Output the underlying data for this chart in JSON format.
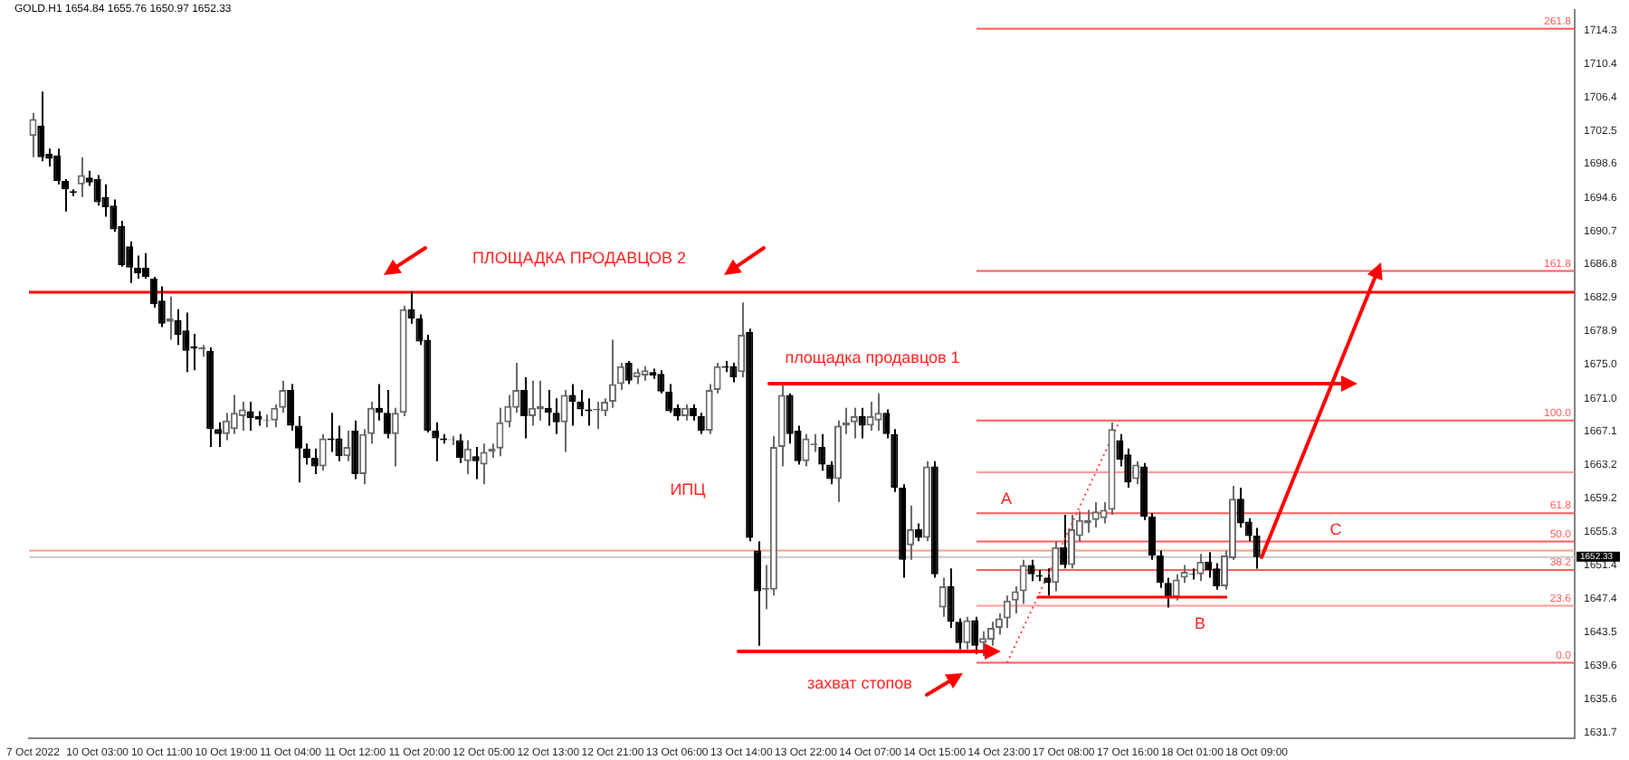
{
  "chart_data": {
    "type": "candlestick",
    "colors": [
      "#666666",
      "#000000",
      "#000000",
      "#000000",
      "#000000",
      "#000000",
      "#666666",
      "#000000",
      "#000000",
      "#000000",
      "#000000",
      "#000000",
      "#000000",
      "#000000",
      "#000000",
      "#000000",
      "#000000",
      "#666666",
      "#000000",
      "#000000",
      "#000000",
      "#666666",
      "#000000",
      "#000000",
      "#666666",
      "#666666",
      "#666666",
      "#000000",
      "#000000",
      "#666666",
      "#666666",
      "#666666",
      "#000000",
      "#000000",
      "#000000",
      "#000000",
      "#666666",
      "#000000",
      "#000000",
      "#666666",
      "#000000",
      "#666666",
      "#666666",
      "#000000",
      "#000000",
      "#666666",
      "#666666",
      "#000000",
      "#000000",
      "#000000",
      "#000000",
      "#000000",
      "#666666",
      "#000000",
      "#666666",
      "#000000",
      "#666666",
      "#666666",
      "#666666",
      "#666666",
      "#666666",
      "#000000",
      "#666666",
      "#666666",
      "#000000",
      "#000000",
      "#666666",
      "#000000",
      "#000000",
      "#000000",
      "#666666",
      "#666666",
      "#666666",
      "#666666",
      "#000000",
      "#666666",
      "#666666",
      "#000000",
      "#000000",
      "#000000",
      "#000000",
      "#666666",
      "#000000",
      "#000000",
      "#666666",
      "#666666",
      "#000000",
      "#000000",
      "#666666",
      "#000000",
      "#000000",
      "#666666",
      "#666666",
      "#666666",
      "#000000",
      "#000000",
      "#666666",
      "#666666",
      "#000000",
      "#000000",
      "#666666",
      "#666666",
      "#666666",
      "#000000",
      "#666666",
      "#666666",
      "#000000",
      "#000000",
      "#000000",
      "#666666",
      "#000000",
      "#666666",
      "#000000",
      "#666666",
      "#000000",
      "#000000",
      "#666666",
      "#000000",
      "#666666",
      "#666666",
      "#666666",
      "#666666",
      "#666666",
      "#666666",
      "#000000",
      "#000000",
      "#000000",
      "#666666",
      "#000000",
      "#666666",
      "#666666",
      "#666666",
      "#666666",
      "#666666",
      "#666666",
      "#000000",
      "#000000",
      "#666666",
      "#000000",
      "#000000",
      "#000000",
      "#000000",
      "#666666",
      "#666666",
      "#000000",
      "#666666",
      "#000000",
      "#000000",
      "#666666",
      "#666666",
      "#000000",
      "#000000",
      "#000000",
      null,
      null,
      null,
      null,
      null,
      null,
      null,
      null,
      null,
      null,
      null,
      null,
      null,
      null,
      null,
      null,
      null,
      null,
      null,
      null,
      null,
      null,
      null,
      null,
      null,
      null,
      null,
      null,
      null,
      null,
      null,
      null,
      null,
      null,
      null,
      null,
      null,
      null,
      null
    ],
    "categories": [
      "7 Oct 2022",
      null,
      null,
      null,
      null,
      null,
      null,
      null,
      "10 Oct 03:00",
      null,
      null,
      null,
      null,
      null,
      null,
      null,
      "10 Oct 11:00",
      null,
      null,
      null,
      null,
      null,
      null,
      null,
      "10 Oct 19:00",
      null,
      null,
      null,
      null,
      null,
      null,
      null,
      "11 Oct 04:00",
      null,
      null,
      null,
      null,
      null,
      null,
      null,
      "11 Oct 12:00",
      null,
      null,
      null,
      null,
      null,
      null,
      null,
      "11 Oct 20:00",
      null,
      null,
      null,
      null,
      null,
      null,
      null,
      "12 Oct 05:00",
      null,
      null,
      null,
      null,
      null,
      null,
      null,
      "12 Oct 13:00",
      null,
      null,
      null,
      null,
      null,
      null,
      null,
      "12 Oct 21:00",
      null,
      null,
      null,
      null,
      null,
      null,
      null,
      "13 Oct 06:00",
      null,
      null,
      null,
      null,
      null,
      null,
      null,
      "13 Oct 14:00",
      null,
      null,
      null,
      null,
      null,
      null,
      null,
      "13 Oct 22:00",
      null,
      null,
      null,
      null,
      null,
      null,
      null,
      "14 Oct 07:00",
      null,
      null,
      null,
      null,
      null,
      null,
      null,
      "14 Oct 15:00",
      null,
      null,
      null,
      null,
      null,
      null,
      null,
      "14 Oct 23:00",
      null,
      null,
      null,
      null,
      null,
      null,
      null,
      "17 Oct 08:00",
      null,
      null,
      null,
      null,
      null,
      null,
      null,
      "17 Oct 16:00",
      null,
      null,
      null,
      null,
      null,
      null,
      null,
      "18 Oct 01:00",
      null,
      null,
      null,
      null,
      null,
      null,
      null,
      "18 Oct 09:00",
      null,
      null,
      null,
      null,
      null,
      null,
      null,
      null,
      null,
      null,
      null,
      null,
      null,
      null,
      null,
      null,
      null,
      null,
      null,
      null,
      null,
      null,
      null,
      null,
      null,
      null,
      null,
      null,
      null,
      null,
      null,
      null,
      null,
      null,
      null,
      null,
      null,
      null,
      null
    ],
    "ohlc": [
      [
        1701.9,
        1704.6,
        1699.4,
        1703.9
      ],
      [
        1703.1,
        1707.1,
        1698.9,
        1699.4
      ],
      [
        1699.8,
        1700.4,
        1698.3,
        1699.2
      ],
      [
        1699.6,
        1700.4,
        1696.2,
        1696.6
      ],
      [
        1696.6,
        1696.8,
        1693.0,
        1695.6
      ],
      [
        1695.4,
        1695.6,
        1694.8,
        1695.2
      ],
      [
        1696.2,
        1699.4,
        1694.7,
        1697.3
      ],
      [
        1697.0,
        1697.8,
        1696.0,
        1696.4
      ],
      [
        1696.8,
        1697.3,
        1693.7,
        1694.1
      ],
      [
        1694.7,
        1696.2,
        1692.4,
        1693.5
      ],
      [
        1693.7,
        1694.4,
        1690.6,
        1690.9
      ],
      [
        1691.3,
        1691.9,
        1686.5,
        1686.7
      ],
      [
        1688.9,
        1689.5,
        1684.6,
        1686.4
      ],
      [
        1686.4,
        1687.8,
        1685.1,
        1685.7
      ],
      [
        1686.4,
        1688.1,
        1685.1,
        1685.3
      ],
      [
        1685.1,
        1685.3,
        1681.7,
        1682.1
      ],
      [
        1682.5,
        1684.2,
        1679.4,
        1679.8
      ],
      [
        1680.0,
        1683.0,
        1677.9,
        1680.4
      ],
      [
        1680.2,
        1681.5,
        1677.3,
        1678.5
      ],
      [
        1679.0,
        1681.1,
        1674.1,
        1676.6
      ],
      [
        1677.1,
        1678.6,
        1674.3,
        1676.9
      ],
      [
        1676.8,
        1677.3,
        1675.9,
        1677.0
      ],
      [
        1676.6,
        1677.0,
        1665.3,
        1667.4
      ],
      [
        1667.4,
        1668.2,
        1665.3,
        1666.8
      ],
      [
        1666.8,
        1669.3,
        1666.1,
        1668.4
      ],
      [
        1667.4,
        1671.4,
        1666.8,
        1669.3
      ],
      [
        1668.9,
        1670.6,
        1667.2,
        1669.7
      ],
      [
        1669.5,
        1670.6,
        1667.2,
        1668.7
      ],
      [
        1668.9,
        1669.5,
        1667.8,
        1668.5
      ],
      [
        1668.4,
        1669.1,
        1667.6,
        1668.5
      ],
      [
        1668.4,
        1670.3,
        1667.6,
        1669.9
      ],
      [
        1669.9,
        1673.1,
        1669.3,
        1672.0
      ],
      [
        1672.0,
        1672.7,
        1667.2,
        1667.8
      ],
      [
        1667.8,
        1668.9,
        1661.1,
        1665.1
      ],
      [
        1665.1,
        1665.7,
        1663.2,
        1664.0
      ],
      [
        1664.0,
        1665.1,
        1662.1,
        1663.0
      ],
      [
        1663.0,
        1666.8,
        1662.5,
        1666.3
      ],
      [
        1666.3,
        1669.3,
        1664.7,
        1666.1
      ],
      [
        1666.3,
        1667.8,
        1663.6,
        1664.2
      ],
      [
        1664.2,
        1667.2,
        1663.6,
        1665.3
      ],
      [
        1667.2,
        1668.4,
        1661.5,
        1662.1
      ],
      [
        1662.1,
        1667.4,
        1660.9,
        1666.8
      ],
      [
        1666.8,
        1670.6,
        1665.7,
        1669.9
      ],
      [
        1669.9,
        1672.7,
        1668.4,
        1669.3
      ],
      [
        1669.3,
        1672.0,
        1666.3,
        1666.8
      ],
      [
        1666.8,
        1669.9,
        1663.0,
        1669.3
      ],
      [
        1669.3,
        1681.9,
        1668.9,
        1681.5
      ],
      [
        1681.5,
        1683.6,
        1679.8,
        1680.4
      ],
      [
        1680.4,
        1680.9,
        1677.3,
        1677.7
      ],
      [
        1677.9,
        1678.5,
        1667.0,
        1667.2
      ],
      [
        1667.2,
        1668.2,
        1663.6,
        1666.3
      ],
      [
        1666.3,
        1666.8,
        1665.7,
        1666.1
      ],
      [
        1666.1,
        1666.6,
        1665.5,
        1666.2
      ],
      [
        1666.1,
        1666.8,
        1663.4,
        1664.0
      ],
      [
        1663.6,
        1666.1,
        1662.1,
        1665.1
      ],
      [
        1664.2,
        1665.3,
        1661.5,
        1663.6
      ],
      [
        1663.2,
        1665.7,
        1660.9,
        1664.7
      ],
      [
        1664.7,
        1665.7,
        1664.0,
        1665.1
      ],
      [
        1665.1,
        1669.9,
        1664.2,
        1668.2
      ],
      [
        1668.2,
        1671.4,
        1667.6,
        1670.1
      ],
      [
        1669.9,
        1675.2,
        1669.3,
        1672.0
      ],
      [
        1672.0,
        1673.5,
        1666.3,
        1668.9
      ],
      [
        1668.9,
        1673.1,
        1667.8,
        1669.9
      ],
      [
        1669.7,
        1673.1,
        1668.4,
        1670.1
      ],
      [
        1669.9,
        1672.0,
        1667.8,
        1669.3
      ],
      [
        1669.3,
        1671.0,
        1666.8,
        1668.2
      ],
      [
        1668.2,
        1672.0,
        1664.7,
        1671.4
      ],
      [
        1671.4,
        1672.7,
        1667.8,
        1670.6
      ],
      [
        1670.6,
        1672.0,
        1668.9,
        1669.7
      ],
      [
        1669.7,
        1671.0,
        1667.8,
        1669.5
      ],
      [
        1669.6,
        1670.6,
        1667.4,
        1669.8
      ],
      [
        1669.5,
        1671.0,
        1668.9,
        1670.6
      ],
      [
        1670.6,
        1677.9,
        1669.9,
        1672.7
      ],
      [
        1672.7,
        1675.2,
        1672.0,
        1674.8
      ],
      [
        1675.2,
        1675.4,
        1672.7,
        1673.1
      ],
      [
        1673.5,
        1674.5,
        1672.7,
        1674.1
      ],
      [
        1673.7,
        1674.8,
        1673.1,
        1674.3
      ],
      [
        1674.1,
        1674.5,
        1673.3,
        1673.7
      ],
      [
        1673.9,
        1674.3,
        1671.6,
        1671.8
      ],
      [
        1671.8,
        1672.7,
        1669.3,
        1669.5
      ],
      [
        1669.9,
        1670.3,
        1668.4,
        1668.9
      ],
      [
        1668.9,
        1670.3,
        1668.4,
        1669.9
      ],
      [
        1669.9,
        1670.3,
        1668.4,
        1668.9
      ],
      [
        1668.9,
        1669.3,
        1666.8,
        1667.2
      ],
      [
        1667.2,
        1672.7,
        1666.8,
        1672.0
      ],
      [
        1672.0,
        1675.2,
        1671.6,
        1674.8
      ],
      [
        1674.8,
        1675.4,
        1674.1,
        1674.6
      ],
      [
        1674.8,
        1675.2,
        1672.9,
        1673.5
      ],
      [
        1674.1,
        1682.3,
        1673.5,
        1678.5
      ],
      [
        1678.8,
        1679.2,
        1654.2,
        1654.6
      ],
      [
        1653.1,
        1654.2,
        1641.9,
        1648.3
      ],
      [
        1648.5,
        1651.4,
        1646.2,
        1648.7
      ],
      [
        1648.5,
        1666.6,
        1647.8,
        1665.3
      ],
      [
        1665.3,
        1672.7,
        1663.0,
        1671.4
      ],
      [
        1671.4,
        1671.6,
        1665.7,
        1666.8
      ],
      [
        1667.2,
        1667.8,
        1663.2,
        1663.6
      ],
      [
        1663.6,
        1666.8,
        1663.0,
        1666.3
      ],
      [
        1665.5,
        1666.8,
        1664.7,
        1665.7
      ],
      [
        1665.3,
        1666.8,
        1662.5,
        1663.2
      ],
      [
        1663.2,
        1663.6,
        1660.9,
        1661.5
      ],
      [
        1661.5,
        1668.4,
        1658.8,
        1667.8
      ],
      [
        1667.8,
        1669.9,
        1666.8,
        1668.2
      ],
      [
        1668.2,
        1669.9,
        1666.3,
        1668.9
      ],
      [
        1668.9,
        1669.9,
        1666.3,
        1667.8
      ],
      [
        1667.8,
        1670.6,
        1667.2,
        1668.9
      ],
      [
        1668.4,
        1671.6,
        1667.2,
        1669.3
      ],
      [
        1669.3,
        1669.7,
        1666.3,
        1666.8
      ],
      [
        1666.8,
        1667.4,
        1660.0,
        1660.5
      ],
      [
        1660.5,
        1660.9,
        1649.9,
        1652.0
      ],
      [
        1653.7,
        1658.4,
        1652.0,
        1655.6
      ],
      [
        1655.6,
        1656.3,
        1654.2,
        1654.6
      ],
      [
        1654.6,
        1663.6,
        1654.2,
        1663.0
      ],
      [
        1663.0,
        1663.6,
        1649.9,
        1650.3
      ],
      [
        1646.4,
        1649.9,
        1645.3,
        1648.9
      ],
      [
        1648.9,
        1651.0,
        1644.0,
        1644.7
      ],
      [
        1644.7,
        1645.1,
        1641.5,
        1642.2
      ],
      [
        1642.2,
        1645.3,
        1641.5,
        1644.9
      ],
      [
        1644.9,
        1645.3,
        1640.9,
        1641.9
      ],
      [
        1642.2,
        1643.6,
        1640.7,
        1642.8
      ],
      [
        1642.6,
        1644.7,
        1641.9,
        1644.0
      ],
      [
        1644.0,
        1645.7,
        1643.2,
        1645.1
      ],
      [
        1645.1,
        1647.8,
        1644.0,
        1647.2
      ],
      [
        1647.2,
        1648.9,
        1645.7,
        1648.3
      ],
      [
        1648.3,
        1652.0,
        1646.8,
        1651.4
      ],
      [
        1651.4,
        1652.0,
        1649.5,
        1650.3
      ],
      [
        1650.2,
        1650.8,
        1649.5,
        1650.0
      ],
      [
        1649.9,
        1651.0,
        1647.8,
        1649.3
      ],
      [
        1649.3,
        1654.2,
        1648.3,
        1653.5
      ],
      [
        1653.5,
        1657.3,
        1651.0,
        1651.4
      ],
      [
        1651.4,
        1657.3,
        1651.0,
        1655.6
      ],
      [
        1654.8,
        1657.7,
        1654.2,
        1656.7
      ],
      [
        1656.3,
        1657.9,
        1655.2,
        1656.7
      ],
      [
        1656.7,
        1658.8,
        1655.8,
        1657.7
      ],
      [
        1656.9,
        1658.8,
        1656.3,
        1657.9
      ],
      [
        1657.9,
        1668.2,
        1657.3,
        1667.4
      ],
      [
        1666.1,
        1666.8,
        1663.0,
        1663.8
      ],
      [
        1664.4,
        1665.1,
        1660.5,
        1661.1
      ],
      [
        1661.5,
        1663.6,
        1660.9,
        1663.2
      ],
      [
        1663.0,
        1663.4,
        1656.7,
        1657.1
      ],
      [
        1657.1,
        1657.5,
        1652.0,
        1652.5
      ],
      [
        1652.5,
        1653.1,
        1648.7,
        1649.3
      ],
      [
        1649.3,
        1649.9,
        1646.4,
        1647.6
      ],
      [
        1647.6,
        1650.3,
        1647.2,
        1649.7
      ],
      [
        1649.9,
        1651.4,
        1649.3,
        1650.6
      ],
      [
        1650.4,
        1651.0,
        1649.7,
        1650.3
      ],
      [
        1650.3,
        1652.7,
        1649.5,
        1651.8
      ],
      [
        1651.8,
        1652.9,
        1649.9,
        1650.8
      ],
      [
        1651.0,
        1651.6,
        1648.5,
        1648.9
      ],
      [
        1648.9,
        1653.1,
        1648.5,
        1652.5
      ],
      [
        1652.2,
        1660.7,
        1652.0,
        1659.2
      ],
      [
        1659.2,
        1660.5,
        1655.8,
        1656.3
      ],
      [
        1656.5,
        1656.9,
        1654.2,
        1654.8
      ],
      [
        1654.84,
        1655.76,
        1650.97,
        1652.33
      ],
      null,
      null,
      null,
      null,
      null,
      null,
      null,
      null,
      null,
      null,
      null,
      null,
      null,
      null,
      null,
      null,
      null,
      null,
      null,
      null,
      null,
      null,
      null,
      null,
      null,
      null,
      null,
      null,
      null,
      null,
      null,
      null,
      null,
      null,
      null,
      null,
      null,
      null,
      null
    ],
    "series": [
      {
        "type": "line",
        "color": "#ff4040",
        "line_style": "dotted",
        "values": [
          null,
          null,
          null,
          null,
          null,
          null,
          null,
          null,
          null,
          null,
          null,
          null,
          null,
          null,
          null,
          null,
          null,
          null,
          null,
          null,
          null,
          null,
          null,
          null,
          null,
          null,
          null,
          null,
          null,
          null,
          null,
          null,
          null,
          null,
          null,
          null,
          null,
          null,
          null,
          null,
          null,
          null,
          null,
          null,
          null,
          null,
          null,
          null,
          null,
          null,
          null,
          null,
          null,
          null,
          null,
          null,
          null,
          null,
          null,
          null,
          null,
          null,
          null,
          null,
          null,
          null,
          null,
          null,
          null,
          null,
          null,
          null,
          null,
          null,
          null,
          null,
          null,
          null,
          null,
          null,
          null,
          null,
          null,
          null,
          null,
          null,
          null,
          null,
          null,
          null,
          null,
          null,
          null,
          null,
          null,
          null,
          null,
          null,
          null,
          null,
          null,
          null,
          null,
          null,
          null,
          null,
          null,
          null,
          null,
          null,
          null,
          null,
          null,
          null,
          null,
          null,
          null,
          null,
          null,
          null,
          null,
          1639.9,
          null,
          null,
          null,
          null,
          null,
          null,
          null,
          null,
          null,
          null,
          null,
          null,
          null,
          1668.4,
          null,
          null,
          null,
          null,
          null,
          null,
          null,
          null,
          null,
          null,
          null,
          null,
          null,
          null,
          null,
          null,
          null,
          null,
          null,
          null,
          null,
          null,
          null,
          null,
          null,
          null,
          null,
          null,
          null,
          null,
          null,
          null,
          null,
          null,
          null,
          null,
          null,
          null,
          null,
          null,
          null,
          null,
          null,
          null,
          null,
          null,
          null,
          null,
          null,
          null,
          null,
          null,
          null,
          null,
          null,
          null
        ]
      }
    ],
    "ylim": [
      1631.0,
      1716.7
    ],
    "yticks": [
      1714.3,
      1710.4,
      1706.4,
      1702.5,
      1698.6,
      1694.6,
      1690.7,
      1686.8,
      1682.9,
      1678.9,
      {
        "value": 1675,
        "label": "1675.0"
      },
      {
        "value": 1671,
        "label": "1671.0"
      },
      1667.1,
      1663.2,
      1659.2,
      1655.3,
      1651.4,
      1647.4,
      1643.5,
      1639.6,
      1635.6,
      1631.7
    ],
    "ref_lines": [
      {
        "axis": "y",
        "value": 1714.5,
        "color": "#ff5a5a"
      },
      {
        "axis": "y",
        "value": 1686.0,
        "color": "#ff5a5a"
      },
      {
        "axis": "y",
        "value": 1668.4,
        "color": "#ff5a5a"
      },
      {
        "axis": "y",
        "value": 1662.3,
        "color": "#ff9a9a"
      },
      {
        "axis": "y",
        "value": 1657.5,
        "color": "#ff5a5a"
      },
      {
        "axis": "y",
        "value": 1654.15,
        "color": "#ff5a5a"
      },
      {
        "axis": "y",
        "value": 1650.8,
        "color": "#ff5a5a"
      },
      {
        "axis": "y",
        "value": 1646.6,
        "color": "#ff9a9a"
      },
      {
        "axis": "y",
        "value": 1639.9,
        "color": "#ff5a5a"
      },
      {
        "axis": "y",
        "value": 1683.5,
        "color": "#ff0000"
      },
      {
        "axis": "y",
        "value": 1653.1,
        "color": "#ffa080"
      },
      {
        "axis": "y",
        "value": 1652.33,
        "label": "1652.33",
        "color": "#c8c8c8"
      }
    ],
    "annotations": [
      "GOLD.H1 1654.84 1655.76 1650.97 1652.33",
      "ПЛОЩАДКА ПРОДАВЦОВ 2",
      "площадка продавцов 1",
      "ИПЦ",
      "захват стопов",
      "A",
      "B",
      "C",
      {
        "text": "261.8",
        "y": 1714.5
      },
      {
        "text": "161.8",
        "y": 1686.0
      },
      {
        "text": "100.0",
        "y": 1668.4
      },
      {
        "text": "61.8",
        "y": 1657.5
      },
      {
        "text": "50.0",
        "y": 1654.15
      },
      {
        "text": "38.2",
        "y": 1650.8
      },
      {
        "text": "23.6",
        "y": 1646.6
      },
      {
        "text": "0.0",
        "y": 1639.9
      }
    ]
  }
}
